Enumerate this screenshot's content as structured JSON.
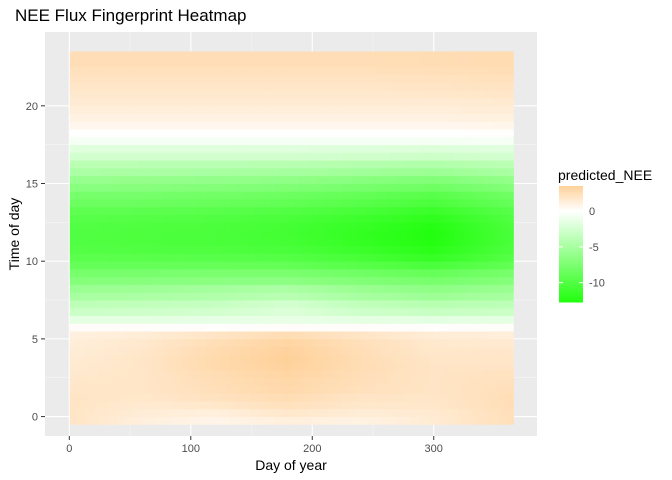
{
  "chart_data": {
    "type": "heatmap",
    "title": "NEE Flux Fingerprint Heatmap",
    "xlabel": "Day of year",
    "ylabel": "Time of day",
    "xlim": [
      -20,
      385
    ],
    "ylim": [
      -1.25,
      24.75
    ],
    "x_ticks": [
      0,
      100,
      200,
      300
    ],
    "y_ticks": [
      0,
      5,
      10,
      15,
      20
    ],
    "x_tick_labels": [
      "0",
      "100",
      "200",
      "300"
    ],
    "y_tick_labels": [
      "0",
      "5",
      "10",
      "15",
      "20"
    ],
    "day_range": [
      1,
      365
    ],
    "hours": [
      0,
      0.5,
      1,
      1.5,
      2,
      2.5,
      3,
      3.5,
      4,
      4.5,
      5,
      5.5,
      6,
      6.5,
      7,
      7.5,
      8,
      8.5,
      9,
      9.5,
      10,
      10.5,
      11,
      11.5,
      12,
      12.5,
      13,
      13.5,
      14,
      14.5,
      15,
      15.5,
      16,
      16.5,
      17,
      17.5,
      18,
      18.5,
      19,
      19.5,
      20,
      20.5,
      21,
      21.5,
      22,
      22.5,
      23
    ],
    "sample_days": [
      1,
      60,
      120,
      180,
      240,
      300,
      365
    ],
    "values": [
      [
        2.0,
        1.2,
        0.8,
        1.2,
        1.0,
        1.5,
        2.4
      ],
      [
        2.0,
        1.4,
        1.2,
        1.8,
        1.4,
        1.6,
        2.4
      ],
      [
        2.0,
        1.6,
        1.8,
        2.3,
        1.8,
        1.8,
        2.5
      ],
      [
        2.0,
        1.8,
        2.2,
        2.6,
        2.0,
        1.9,
        2.5
      ],
      [
        1.9,
        1.9,
        2.4,
        2.9,
        2.3,
        2.0,
        2.4
      ],
      [
        1.8,
        1.9,
        2.5,
        3.0,
        2.4,
        2.0,
        2.3
      ],
      [
        1.7,
        1.9,
        2.6,
        3.2,
        2.5,
        2.0,
        2.2
      ],
      [
        1.6,
        1.9,
        2.8,
        3.4,
        2.6,
        2.0,
        2.0
      ],
      [
        1.5,
        1.9,
        2.8,
        3.5,
        2.6,
        1.9,
        1.9
      ],
      [
        1.4,
        1.8,
        2.7,
        3.4,
        2.5,
        1.8,
        1.8
      ],
      [
        1.3,
        1.7,
        2.5,
        3.2,
        2.4,
        1.7,
        1.6
      ],
      [
        1.1,
        1.4,
        2.0,
        2.6,
        2.0,
        1.4,
        1.3
      ],
      [
        0.2,
        0.2,
        0.1,
        0.2,
        0.2,
        0.1,
        0.2
      ],
      [
        -1.5,
        -1.5,
        -1.4,
        -1.3,
        -1.5,
        -1.6,
        -1.5
      ],
      [
        -3.0,
        -2.8,
        -2.6,
        -2.0,
        -2.8,
        -3.2,
        -3.0
      ],
      [
        -3.8,
        -3.6,
        -3.3,
        -2.5,
        -3.6,
        -4.1,
        -3.8
      ],
      [
        -5.0,
        -4.8,
        -4.5,
        -4.0,
        -5.0,
        -5.6,
        -5.0
      ],
      [
        -5.8,
        -5.6,
        -5.2,
        -4.8,
        -5.8,
        -6.5,
        -5.8
      ],
      [
        -7.0,
        -6.9,
        -6.7,
        -6.6,
        -7.2,
        -7.8,
        -7.0
      ],
      [
        -7.8,
        -7.7,
        -7.6,
        -7.6,
        -8.2,
        -8.8,
        -7.8
      ],
      [
        -8.8,
        -8.8,
        -8.8,
        -8.9,
        -9.6,
        -10.4,
        -9.0
      ],
      [
        -9.4,
        -9.5,
        -9.6,
        -9.8,
        -10.6,
        -11.6,
        -9.8
      ],
      [
        -9.8,
        -10.0,
        -10.1,
        -10.4,
        -11.2,
        -12.2,
        -10.2
      ],
      [
        -10.0,
        -10.2,
        -10.4,
        -10.7,
        -11.6,
        -12.6,
        -10.4
      ],
      [
        -10.0,
        -10.2,
        -10.4,
        -10.8,
        -11.7,
        -12.7,
        -10.4
      ],
      [
        -9.9,
        -10.1,
        -10.3,
        -10.7,
        -11.5,
        -12.5,
        -10.3
      ],
      [
        -9.6,
        -9.8,
        -10.0,
        -10.4,
        -11.1,
        -12.0,
        -10.0
      ],
      [
        -9.2,
        -9.3,
        -9.5,
        -9.9,
        -10.5,
        -11.3,
        -9.6
      ],
      [
        -8.4,
        -8.5,
        -8.7,
        -9.0,
        -9.6,
        -10.3,
        -8.8
      ],
      [
        -7.8,
        -7.9,
        -8.1,
        -8.4,
        -8.9,
        -9.6,
        -8.2
      ],
      [
        -6.8,
        -6.9,
        -7.1,
        -7.3,
        -7.8,
        -8.3,
        -7.1
      ],
      [
        -6.0,
        -6.1,
        -6.2,
        -6.4,
        -6.8,
        -7.2,
        -6.2
      ],
      [
        -4.8,
        -4.9,
        -5.0,
        -5.1,
        -5.4,
        -5.7,
        -4.9
      ],
      [
        -3.9,
        -4.0,
        -4.0,
        -4.1,
        -4.3,
        -4.5,
        -3.9
      ],
      [
        -2.6,
        -2.6,
        -2.6,
        -2.6,
        -2.7,
        -2.9,
        -2.5
      ],
      [
        -1.8,
        -1.8,
        -1.8,
        -1.8,
        -1.9,
        -2.0,
        -1.7
      ],
      [
        -0.6,
        -0.6,
        -0.6,
        -0.6,
        -0.6,
        -0.6,
        -0.5
      ],
      [
        0.0,
        0.0,
        0.0,
        0.0,
        0.0,
        0.0,
        0.1
      ],
      [
        0.6,
        0.6,
        0.6,
        0.6,
        0.6,
        0.6,
        0.7
      ],
      [
        1.0,
        1.0,
        1.0,
        1.0,
        1.0,
        1.0,
        1.1
      ],
      [
        1.3,
        1.3,
        1.3,
        1.3,
        1.3,
        1.3,
        1.4
      ],
      [
        1.5,
        1.5,
        1.5,
        1.5,
        1.5,
        1.5,
        1.6
      ],
      [
        1.7,
        1.7,
        1.7,
        1.7,
        1.7,
        1.8,
        1.9
      ],
      [
        1.9,
        1.9,
        1.9,
        1.9,
        1.9,
        2.0,
        2.1
      ],
      [
        2.1,
        2.1,
        2.1,
        2.1,
        2.1,
        2.2,
        2.3
      ],
      [
        2.3,
        2.3,
        2.3,
        2.3,
        2.3,
        2.4,
        2.5
      ],
      [
        2.5,
        2.5,
        2.5,
        2.5,
        2.5,
        2.6,
        2.7
      ]
    ],
    "grid": true,
    "legend": {
      "title": "predicted_NEE",
      "position": "right",
      "labels": [
        "0",
        "-5",
        "-10"
      ],
      "values": [
        0,
        -5,
        -10
      ],
      "min": -12.7,
      "max": 3.5
    },
    "colors": {
      "low": "#22ff0f",
      "mid": "#ffffff",
      "high": "#ffd19a",
      "panel_background": "#ebebeb",
      "grid_major": "#ffffff",
      "grid_minor": "#f5f5f5"
    }
  }
}
